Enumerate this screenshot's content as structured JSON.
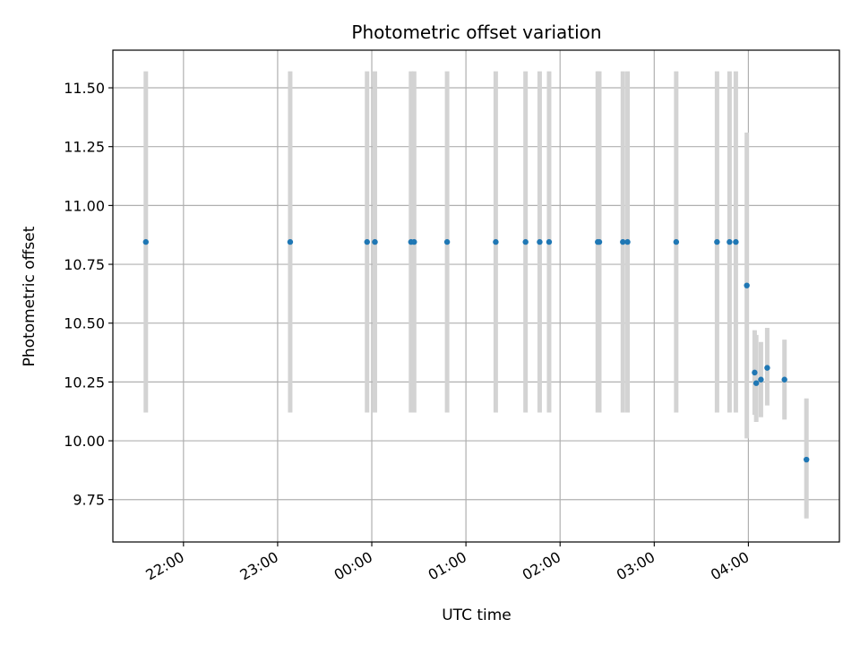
{
  "chart_data": {
    "type": "scatter",
    "title": "Photometric offset variation",
    "xlabel": "UTC time",
    "ylabel": "Photometric offset",
    "grid": true,
    "xlim": [
      "21:15",
      "04:58"
    ],
    "ylim": [
      9.57,
      11.66
    ],
    "x_ticks": [
      "22:00",
      "23:00",
      "00:00",
      "01:00",
      "02:00",
      "03:00",
      "04:00"
    ],
    "y_ticks": [
      "9.75",
      "10.00",
      "10.25",
      "10.50",
      "10.75",
      "11.00",
      "11.25",
      "11.50"
    ],
    "series": [
      {
        "marker_color": "#1f77b4",
        "errorbar_color": "#d3d3d3",
        "points": [
          {
            "t": "21:36",
            "y": 10.845,
            "lo": 10.12,
            "hi": 11.57
          },
          {
            "t": "23:08",
            "y": 10.845,
            "lo": 10.12,
            "hi": 11.57
          },
          {
            "t": "23:57",
            "y": 10.845,
            "lo": 10.12,
            "hi": 11.57
          },
          {
            "t": "00:02",
            "y": 10.845,
            "lo": 10.12,
            "hi": 11.57
          },
          {
            "t": "00:25",
            "y": 10.845,
            "lo": 10.12,
            "hi": 11.57
          },
          {
            "t": "00:27",
            "y": 10.845,
            "lo": 10.12,
            "hi": 11.57
          },
          {
            "t": "00:48",
            "y": 10.845,
            "lo": 10.12,
            "hi": 11.57
          },
          {
            "t": "01:19",
            "y": 10.845,
            "lo": 10.12,
            "hi": 11.57
          },
          {
            "t": "01:38",
            "y": 10.845,
            "lo": 10.12,
            "hi": 11.57
          },
          {
            "t": "01:47",
            "y": 10.845,
            "lo": 10.12,
            "hi": 11.57
          },
          {
            "t": "01:53",
            "y": 10.845,
            "lo": 10.12,
            "hi": 11.57
          },
          {
            "t": "02:24",
            "y": 10.845,
            "lo": 10.12,
            "hi": 11.57
          },
          {
            "t": "02:25",
            "y": 10.845,
            "lo": 10.12,
            "hi": 11.57
          },
          {
            "t": "02:40",
            "y": 10.845,
            "lo": 10.12,
            "hi": 11.57
          },
          {
            "t": "02:43",
            "y": 10.845,
            "lo": 10.12,
            "hi": 11.57
          },
          {
            "t": "03:14",
            "y": 10.845,
            "lo": 10.12,
            "hi": 11.57
          },
          {
            "t": "03:40",
            "y": 10.845,
            "lo": 10.12,
            "hi": 11.57
          },
          {
            "t": "03:48",
            "y": 10.845,
            "lo": 10.12,
            "hi": 11.57
          },
          {
            "t": "03:52",
            "y": 10.845,
            "lo": 10.12,
            "hi": 11.57
          },
          {
            "t": "03:59",
            "y": 10.66,
            "lo": 10.01,
            "hi": 11.31
          },
          {
            "t": "04:04",
            "y": 10.29,
            "lo": 10.11,
            "hi": 10.47
          },
          {
            "t": "04:05",
            "y": 10.245,
            "lo": 10.08,
            "hi": 10.45
          },
          {
            "t": "04:08",
            "y": 10.26,
            "lo": 10.1,
            "hi": 10.42
          },
          {
            "t": "04:12",
            "y": 10.31,
            "lo": 10.15,
            "hi": 10.48
          },
          {
            "t": "04:23",
            "y": 10.26,
            "lo": 10.09,
            "hi": 10.43
          },
          {
            "t": "04:37",
            "y": 9.92,
            "lo": 9.67,
            "hi": 10.18
          }
        ]
      }
    ]
  }
}
